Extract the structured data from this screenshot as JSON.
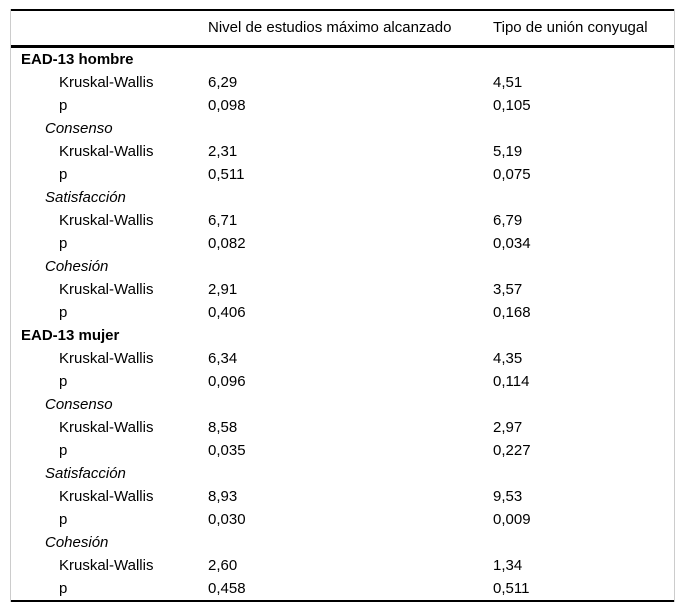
{
  "table": {
    "columns": [
      "",
      "Nivel de estudios máximo alcanzado",
      "Tipo de unión conyugal"
    ],
    "rows": [
      {
        "style": "group",
        "label": "EAD-13 hombre",
        "col1": "",
        "col2": ""
      },
      {
        "style": "stat",
        "label": "Kruskal-Wallis",
        "col1": "6,29",
        "col2": "4,51"
      },
      {
        "style": "stat",
        "label": "p",
        "col1": "0,098",
        "col2": "0,105"
      },
      {
        "style": "subscale",
        "label": "Consenso",
        "col1": "",
        "col2": ""
      },
      {
        "style": "stat",
        "label": "Kruskal-Wallis",
        "col1": "2,31",
        "col2": "5,19"
      },
      {
        "style": "stat",
        "label": "p",
        "col1": "0,511",
        "col2": "0,075"
      },
      {
        "style": "subscale",
        "label": "Satisfacción",
        "col1": "",
        "col2": ""
      },
      {
        "style": "stat",
        "label": "Kruskal-Wallis",
        "col1": "6,71",
        "col2": "6,79"
      },
      {
        "style": "stat",
        "label": "p",
        "col1": "0,082",
        "col2": "0,034"
      },
      {
        "style": "subscale",
        "label": "Cohesión",
        "col1": "",
        "col2": ""
      },
      {
        "style": "stat",
        "label": "Kruskal-Wallis",
        "col1": "2,91",
        "col2": "3,57"
      },
      {
        "style": "stat",
        "label": "p",
        "col1": "0,406",
        "col2": "0,168"
      },
      {
        "style": "group",
        "label": "EAD-13 mujer",
        "col1": "",
        "col2": ""
      },
      {
        "style": "stat",
        "label": "Kruskal-Wallis",
        "col1": "6,34",
        "col2": "4,35"
      },
      {
        "style": "stat",
        "label": "p",
        "col1": "0,096",
        "col2": "0,114"
      },
      {
        "style": "subscale",
        "label": "Consenso",
        "col1": "",
        "col2": ""
      },
      {
        "style": "stat",
        "label": "Kruskal-Wallis",
        "col1": "8,58",
        "col2": "2,97"
      },
      {
        "style": "stat",
        "label": "p",
        "col1": "0,035",
        "col2": "0,227"
      },
      {
        "style": "subscale",
        "label": "Satisfacción",
        "col1": "",
        "col2": ""
      },
      {
        "style": "stat",
        "label": "Kruskal-Wallis",
        "col1": "8,93",
        "col2": "9,53"
      },
      {
        "style": "stat",
        "label": "p",
        "col1": "0,030",
        "col2": "0,009"
      },
      {
        "style": "subscale",
        "label": "Cohesión",
        "col1": "",
        "col2": ""
      },
      {
        "style": "stat",
        "label": "Kruskal-Wallis",
        "col1": "2,60",
        "col2": "1,34"
      },
      {
        "style": "stat",
        "label": "p",
        "col1": "0,458",
        "col2": "0,511"
      }
    ]
  }
}
